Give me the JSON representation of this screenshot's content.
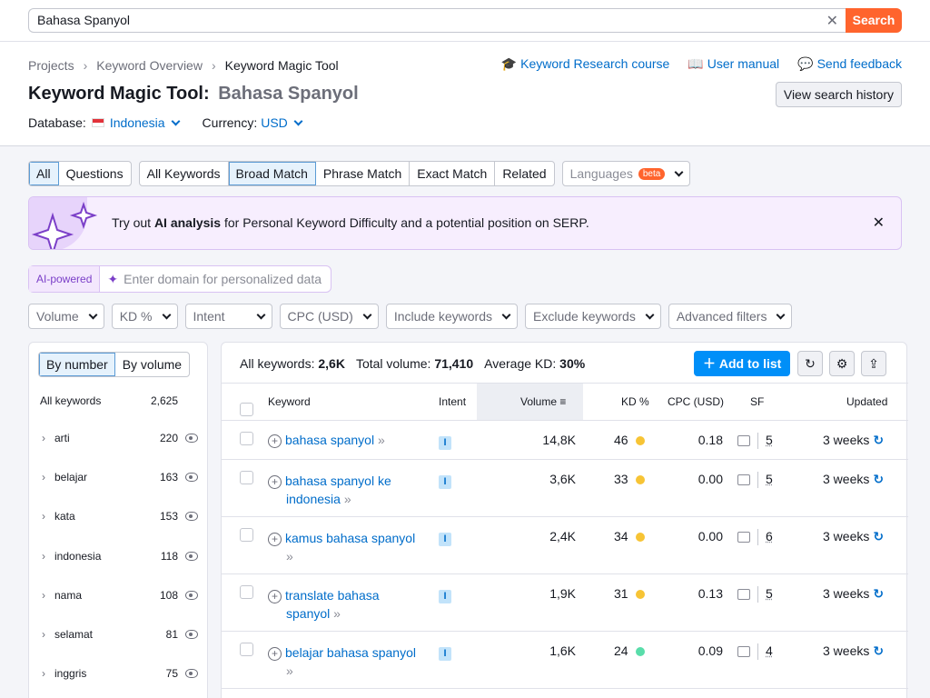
{
  "search": {
    "value": "Bahasa Spanyol",
    "button": "Search"
  },
  "breadcrumb": [
    "Projects",
    "Keyword Overview",
    "Keyword Magic Tool"
  ],
  "title": {
    "tool": "Keyword Magic Tool:",
    "query": "Bahasa Spanyol"
  },
  "database": {
    "label": "Database:",
    "value": "Indonesia",
    "currency_label": "Currency:",
    "currency": "USD"
  },
  "header_links": {
    "course": "Keyword Research course",
    "manual": "User manual",
    "feedback": "Send feedback",
    "history": "View search history"
  },
  "tabs": {
    "group1": [
      "All",
      "Questions"
    ],
    "group2": [
      "All Keywords",
      "Broad Match",
      "Phrase Match",
      "Exact Match",
      "Related"
    ],
    "languages": "Languages",
    "beta": "beta"
  },
  "ai_banner": {
    "pre": "Try out ",
    "bold": "AI analysis",
    "post": " for Personal Keyword Difficulty and a potential position on SERP."
  },
  "ai_domain": {
    "tag": "AI-powered",
    "placeholder": "Enter domain for personalized data"
  },
  "filters": [
    "Volume",
    "KD %",
    "Intent",
    "CPC (USD)",
    "Include keywords",
    "Exclude keywords",
    "Advanced filters"
  ],
  "groups": {
    "toggle": [
      "By number",
      "By volume"
    ],
    "head_label": "All keywords",
    "head_count": "2,625",
    "items": [
      {
        "name": "arti",
        "count": "220"
      },
      {
        "name": "belajar",
        "count": "163"
      },
      {
        "name": "kata",
        "count": "153"
      },
      {
        "name": "indonesia",
        "count": "118"
      },
      {
        "name": "nama",
        "count": "108"
      },
      {
        "name": "selamat",
        "count": "81"
      },
      {
        "name": "inggris",
        "count": "75"
      }
    ]
  },
  "summary": {
    "all_label": "All keywords:",
    "all": "2,6K",
    "vol_label": "Total volume:",
    "vol": "71,410",
    "kd_label": "Average KD:",
    "kd": "30%"
  },
  "add_button": "Add to list",
  "columns": {
    "keyword": "Keyword",
    "intent": "Intent",
    "volume": "Volume",
    "kd": "KD %",
    "cpc": "CPC (USD)",
    "sf": "SF",
    "updated": "Updated"
  },
  "rows": [
    {
      "kw1": "bahasa spanyol",
      "kw2": "",
      "intent": "I",
      "volume": "14,8K",
      "kd": "46",
      "cpc": "0.18",
      "sf": "5",
      "updated": "3 weeks"
    },
    {
      "kw1": "bahasa spanyol ke",
      "kw2": "indonesia",
      "intent": "I",
      "volume": "3,6K",
      "kd": "33",
      "cpc": "0.00",
      "sf": "5",
      "updated": "3 weeks"
    },
    {
      "kw1": "kamus bahasa spanyol",
      "kw2": "",
      "intent": "I",
      "volume": "2,4K",
      "kd": "34",
      "cpc": "0.00",
      "sf": "6",
      "updated": "3 weeks"
    },
    {
      "kw1": "translate bahasa",
      "kw2": "spanyol",
      "intent": "I",
      "volume": "1,9K",
      "kd": "31",
      "cpc": "0.13",
      "sf": "5",
      "updated": "3 weeks"
    },
    {
      "kw1": "belajar bahasa spanyol",
      "kw2": "",
      "intent": "I",
      "volume": "1,6K",
      "kd": "24",
      "cpc": "0.09",
      "sf": "4",
      "updated": "3 weeks"
    }
  ],
  "colors": {
    "kd_yellow": "#f7c435",
    "kd_green": "#59ddaa",
    "accent": "#ff642d",
    "link": "#006dca"
  }
}
